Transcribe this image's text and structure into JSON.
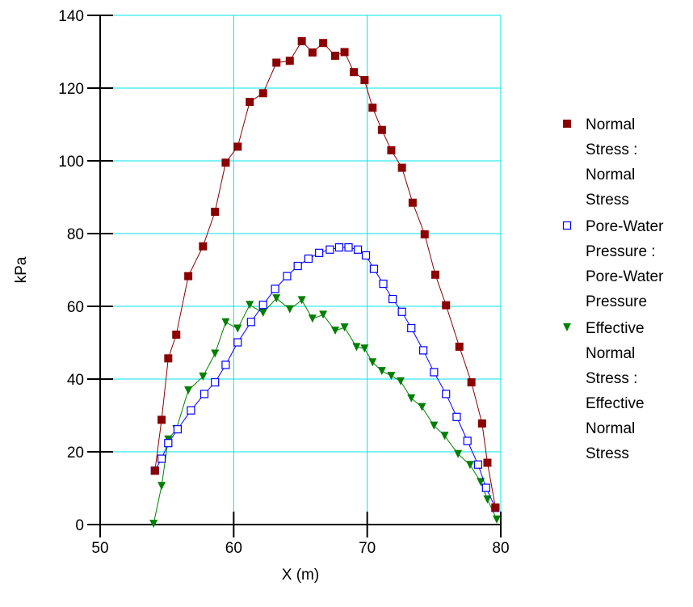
{
  "chart_data": {
    "type": "line",
    "title": "",
    "xlabel": "X (m)",
    "ylabel": "kPa",
    "xlim": [
      50,
      80
    ],
    "ylim": [
      0,
      140
    ],
    "x_ticks": [
      "50",
      "60",
      "70",
      "80"
    ],
    "y_ticks": [
      "0",
      "20",
      "40",
      "60",
      "80",
      "100",
      "120",
      "140"
    ],
    "grid": true,
    "legend_position": "right",
    "series": [
      {
        "name": "Normal Stress : Normal Stress",
        "legend_lines": [
          "Normal",
          "Stress :",
          "Normal",
          "Stress"
        ],
        "color": "#8b0000",
        "marker": "filled-square",
        "x": [
          54.1,
          54.6,
          55.1,
          55.7,
          56.6,
          57.7,
          58.6,
          59.4,
          60.3,
          61.2,
          62.2,
          63.2,
          64.2,
          65.1,
          65.9,
          66.7,
          67.6,
          68.3,
          69.0,
          69.8,
          70.4,
          71.1,
          71.8,
          72.6,
          73.4,
          74.3,
          75.1,
          75.9,
          76.9,
          77.8,
          78.6,
          79.0,
          79.6
        ],
        "y": [
          14.8,
          28.8,
          45.7,
          52.2,
          68.3,
          76.5,
          86.0,
          99.5,
          103.9,
          116.2,
          118.6,
          127.0,
          127.5,
          132.9,
          129.8,
          132.4,
          128.9,
          129.9,
          124.4,
          122.2,
          114.6,
          108.5,
          102.9,
          98.1,
          88.5,
          79.8,
          68.7,
          60.3,
          48.9,
          39.1,
          27.8,
          17.0,
          4.7
        ]
      },
      {
        "name": "Pore-Water Pressure : Pore-Water Pressure",
        "legend_lines": [
          "Pore-Water",
          "Pressure :",
          "Pore-Water",
          "Pressure"
        ],
        "color": "#0000ff",
        "marker": "open-square",
        "x": [
          54.1,
          54.6,
          55.1,
          55.8,
          56.8,
          57.8,
          58.6,
          59.4,
          60.3,
          61.3,
          62.2,
          63.1,
          64.0,
          64.8,
          65.6,
          66.4,
          67.2,
          67.9,
          68.6,
          69.3,
          69.9,
          70.5,
          71.2,
          71.9,
          72.6,
          73.3,
          74.2,
          75.0,
          75.9,
          76.7,
          77.5,
          78.3,
          78.9,
          79.6
        ],
        "y": [
          14.8,
          18.1,
          22.4,
          26.2,
          31.4,
          35.9,
          39.1,
          43.9,
          50.1,
          55.7,
          60.4,
          64.8,
          68.3,
          71.1,
          73.1,
          74.7,
          75.6,
          76.2,
          76.2,
          75.6,
          74.0,
          70.3,
          66.2,
          62.0,
          58.5,
          54.0,
          47.9,
          41.9,
          35.9,
          29.6,
          23.0,
          16.5,
          10.1,
          4.6
        ]
      },
      {
        "name": "Effective Normal Stress : Effective Normal Stress",
        "legend_lines": [
          "Effective",
          "Normal",
          "Stress :",
          "Effective",
          "Normal",
          "Stress"
        ],
        "color": "#007f00",
        "marker": "filled-triangle-down",
        "x": [
          54.0,
          54.6,
          55.1,
          55.7,
          56.6,
          57.7,
          58.6,
          59.4,
          60.3,
          61.2,
          62.2,
          63.2,
          64.2,
          65.1,
          65.9,
          66.7,
          67.6,
          68.3,
          69.2,
          69.8,
          70.4,
          71.1,
          71.8,
          72.5,
          73.3,
          74.1,
          75.0,
          75.8,
          76.8,
          77.7,
          78.5,
          79.0,
          79.7
        ],
        "y": [
          0.2,
          10.6,
          23.4,
          26.2,
          36.9,
          40.7,
          47.0,
          55.6,
          53.9,
          60.4,
          58.2,
          62.2,
          59.2,
          61.7,
          56.6,
          57.7,
          53.3,
          54.2,
          48.8,
          48.4,
          44.6,
          42.2,
          40.9,
          39.4,
          34.7,
          32.3,
          27.2,
          24.4,
          19.4,
          16.4,
          11.7,
          6.9,
          1.4
        ]
      }
    ]
  }
}
